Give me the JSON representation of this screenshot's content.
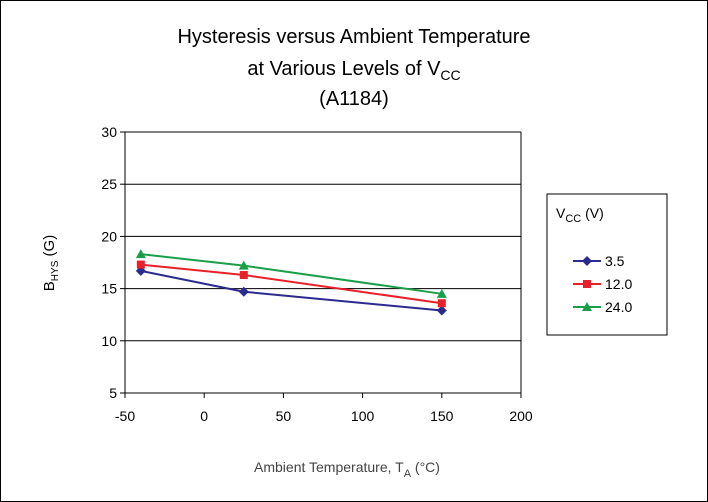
{
  "chart_data": {
    "type": "line",
    "title": {
      "line1": "Hysteresis versus Ambient Temperature",
      "line2_main": "at Various Levels of V",
      "line2_sub": "CC",
      "line3": "(A1184)"
    },
    "xlabel": {
      "main": "Ambient Temperature, T",
      "sub": "A",
      "suffix": " (°C)"
    },
    "ylabel": {
      "main": "B",
      "sub": "HYS",
      "suffix": " (G)"
    },
    "xlim": [
      -50,
      200
    ],
    "ylim": [
      5,
      30
    ],
    "xticks": [
      -50,
      0,
      50,
      100,
      150,
      200
    ],
    "yticks": [
      5,
      10,
      15,
      20,
      25,
      30
    ],
    "grid": "horizontal",
    "legend": {
      "position": "right",
      "title_main": "V",
      "title_sub": "CC",
      "title_suffix": " (V)"
    },
    "x": [
      -40,
      25,
      150
    ],
    "series": [
      {
        "name": "3.5",
        "values": [
          16.7,
          14.7,
          12.9
        ],
        "color": "#2B2B8F",
        "marker": "diamond"
      },
      {
        "name": "12.0",
        "values": [
          17.3,
          16.3,
          13.6
        ],
        "color": "#E8202A",
        "marker": "square"
      },
      {
        "name": "24.0",
        "values": [
          18.3,
          17.2,
          14.5
        ],
        "color": "#1A9E4A",
        "marker": "triangle"
      }
    ]
  }
}
